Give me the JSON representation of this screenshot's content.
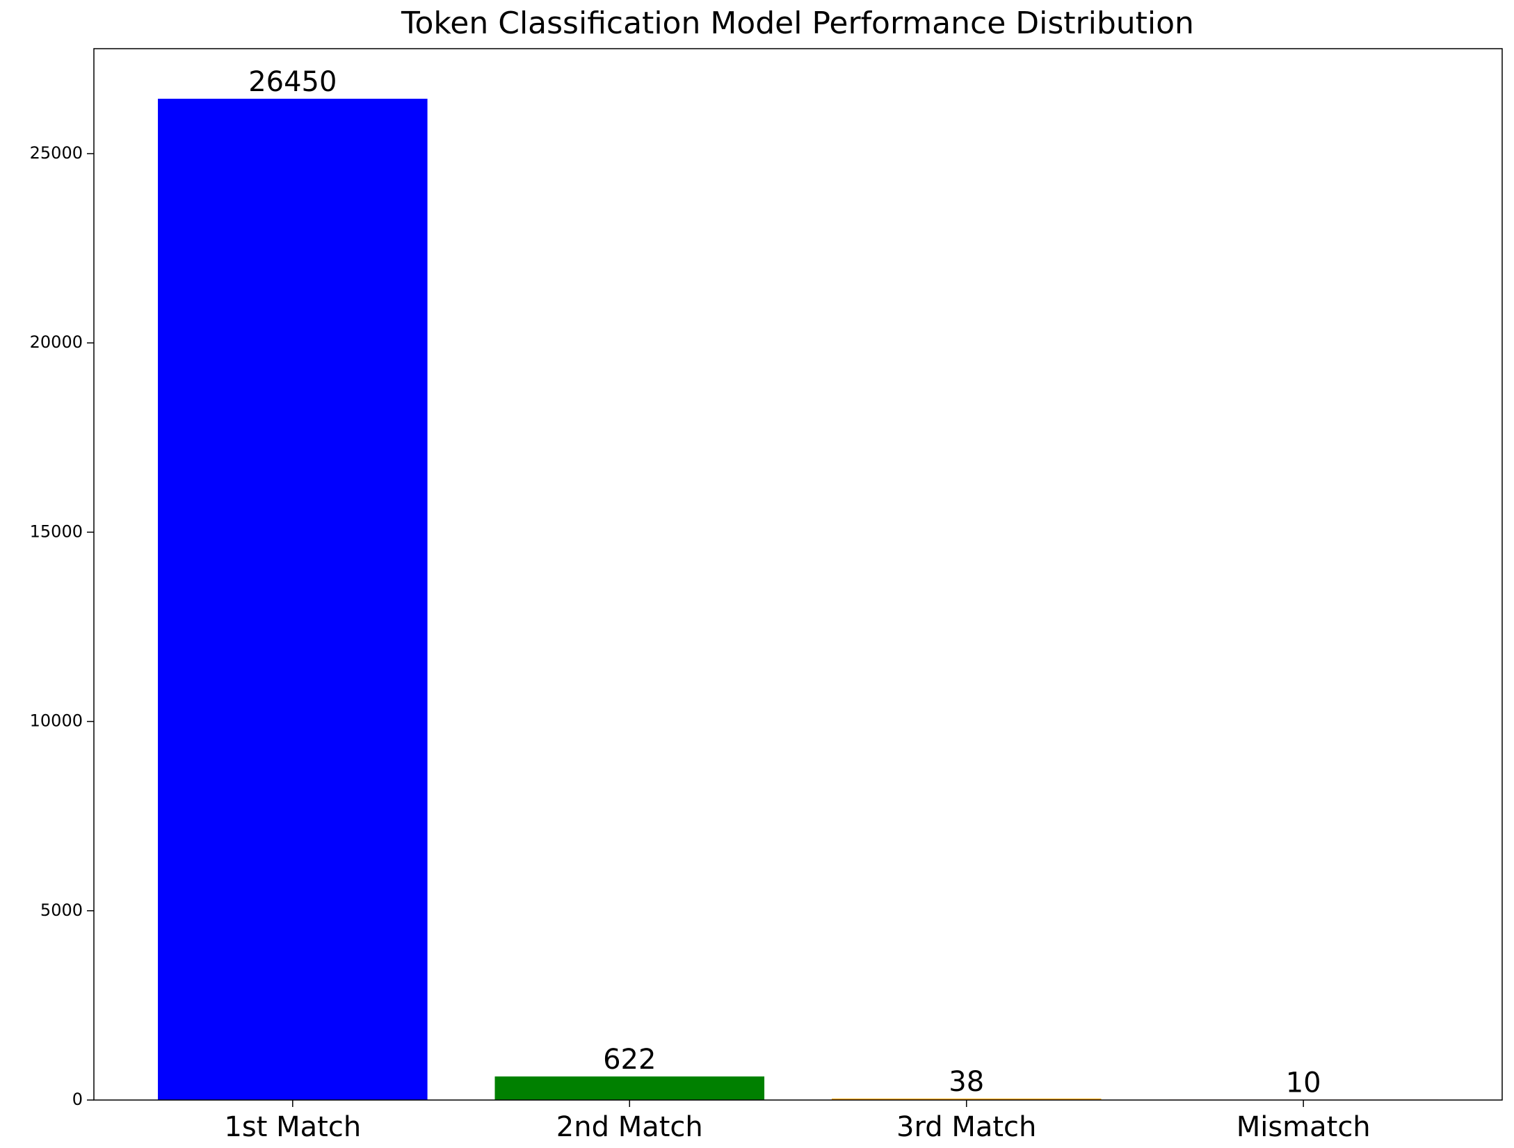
{
  "chart_data": {
    "type": "bar",
    "title": "Token Classification Model Performance Distribution",
    "categories": [
      "1st Match",
      "2nd Match",
      "3rd Match",
      "Mismatch"
    ],
    "values": [
      26450,
      622,
      38,
      10
    ],
    "colors": [
      "#0000ff",
      "#008000",
      "#ffa500",
      "#ff0000"
    ],
    "ylim": [
      0,
      27772.5
    ],
    "yticks": [
      0,
      5000,
      10000,
      15000,
      20000,
      25000
    ],
    "grid": false
  }
}
